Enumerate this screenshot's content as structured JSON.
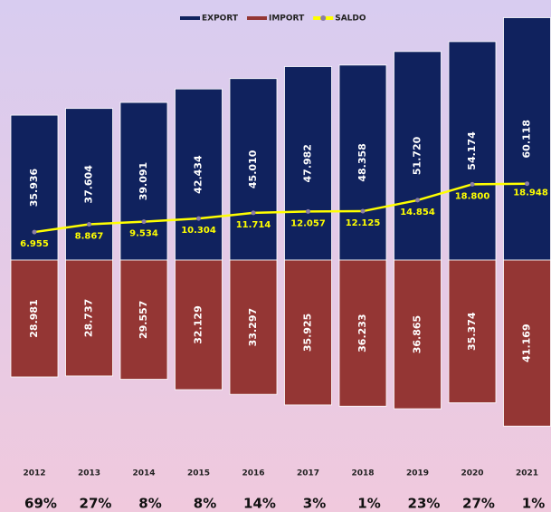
{
  "chart_data": {
    "type": "bar",
    "categories": [
      "2012",
      "2013",
      "2014",
      "2015",
      "2016",
      "2017",
      "2018",
      "2019",
      "2020",
      "2021"
    ],
    "series": [
      {
        "name": "EXPORT",
        "color": "#10225e",
        "type": "bar",
        "values": [
          35.936,
          37.604,
          39.091,
          42.434,
          45.01,
          47.982,
          48.358,
          51.72,
          54.174,
          60.118
        ],
        "value_labels": [
          "35.936",
          "37.604",
          "39.091",
          "42.434",
          "45.010",
          "47.982",
          "48.358",
          "51.720",
          "54.174",
          "60.118"
        ]
      },
      {
        "name": "IMPORT",
        "color": "#943634",
        "type": "bar",
        "values": [
          -28.981,
          -28.737,
          -29.557,
          -32.129,
          -33.297,
          -35.925,
          -36.233,
          -36.865,
          -35.374,
          -41.169
        ],
        "value_labels": [
          "28.981",
          "28.737",
          "29.557",
          "32.129",
          "33.297",
          "35.925",
          "36.233",
          "36.865",
          "35.374",
          "41.169"
        ]
      },
      {
        "name": "SALDO",
        "color": "#ffff00",
        "type": "line",
        "marker_color": "#8c7ea6",
        "values": [
          6.955,
          8.867,
          9.534,
          10.304,
          11.714,
          12.057,
          12.125,
          14.854,
          18.8,
          18.948
        ],
        "value_labels": [
          "6.955",
          "8.867",
          "9.534",
          "10.304",
          "11.714",
          "12.057",
          "12.125",
          "14.854",
          "18.800",
          "18.948"
        ]
      }
    ],
    "annotations": [
      "69%",
      "27%",
      "8%",
      "8%",
      "14%",
      "3%",
      "1%",
      "23%",
      "27%",
      "1%"
    ],
    "ylim": [
      -50,
      64.5
    ],
    "legend": "top"
  }
}
